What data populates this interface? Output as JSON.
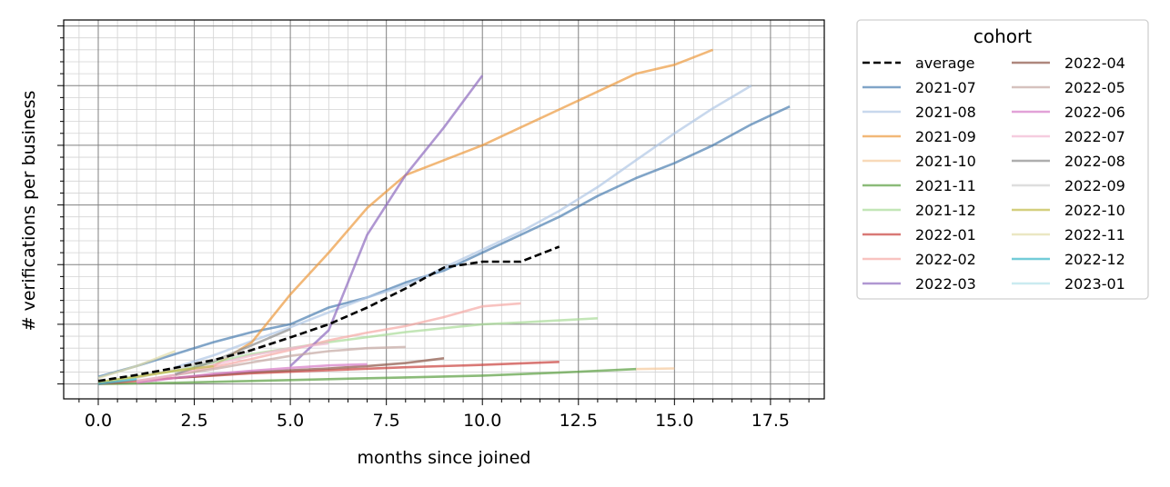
{
  "chart_data": {
    "type": "line",
    "title": "",
    "xlabel": "months since joined",
    "ylabel": "# verifications per business",
    "xlim": [
      -0.9,
      18.9
    ],
    "ylim": [
      -0.25,
      6.1
    ],
    "x_ticks": [
      0.0,
      2.5,
      5.0,
      7.5,
      10.0,
      12.5,
      15.0,
      17.5
    ],
    "x_tick_labels": [
      "0.0",
      "2.5",
      "5.0",
      "7.5",
      "10.0",
      "12.5",
      "15.0",
      "17.5"
    ],
    "y_ticks_shown_without_labels": [
      0,
      1,
      2,
      3,
      4,
      5,
      6
    ],
    "grid": true,
    "legend": {
      "title": "cohort",
      "placement": "outside-right",
      "columns": 2
    },
    "series": [
      {
        "name": "average",
        "color": "#000000",
        "dashed": true,
        "alpha": 1.0,
        "x": [
          0,
          1,
          2,
          3,
          4,
          5,
          6,
          7,
          8,
          9,
          10,
          11,
          12
        ],
        "y": [
          0.05,
          0.15,
          0.27,
          0.4,
          0.57,
          0.78,
          1.0,
          1.28,
          1.6,
          1.95,
          2.05,
          2.05,
          2.3
        ]
      },
      {
        "name": "2021-07",
        "color": "#4c7fb0",
        "alpha": 0.7,
        "x": [
          0,
          1,
          2,
          3,
          4,
          5,
          6,
          7,
          8,
          9,
          10,
          11,
          12,
          13,
          14,
          15,
          16,
          17,
          18
        ],
        "y": [
          0.12,
          0.3,
          0.5,
          0.7,
          0.87,
          1.0,
          1.28,
          1.45,
          1.7,
          1.9,
          2.2,
          2.5,
          2.8,
          3.15,
          3.45,
          3.7,
          4.0,
          4.35,
          4.65
        ]
      },
      {
        "name": "2021-08",
        "color": "#b0c8e6",
        "alpha": 0.7,
        "x": [
          2,
          3,
          4,
          5,
          6,
          7,
          8,
          9,
          10,
          11,
          12,
          13,
          14,
          15,
          16,
          17
        ],
        "y": [
          0.28,
          0.48,
          0.72,
          0.95,
          1.2,
          1.45,
          1.65,
          1.95,
          2.25,
          2.55,
          2.9,
          3.3,
          3.75,
          4.2,
          4.62,
          5.0
        ]
      },
      {
        "name": "2021-09",
        "color": "#ed9a3e",
        "alpha": 0.7,
        "x": [
          3,
          4,
          5,
          6,
          7,
          8,
          9,
          10,
          11,
          12,
          13,
          14,
          15,
          16
        ],
        "y": [
          0.3,
          0.7,
          1.5,
          2.2,
          2.95,
          3.5,
          3.75,
          4.0,
          4.3,
          4.6,
          4.9,
          5.2,
          5.35,
          5.6
        ]
      },
      {
        "name": "2021-10",
        "color": "#f5c99b",
        "alpha": 0.7,
        "x": [
          14,
          15
        ],
        "y": [
          0.25,
          0.26
        ]
      },
      {
        "name": "2021-11",
        "color": "#5a9e40",
        "alpha": 0.7,
        "x": [
          0,
          2,
          4,
          6,
          8,
          10,
          12,
          14
        ],
        "y": [
          0.0,
          0.02,
          0.05,
          0.08,
          0.11,
          0.14,
          0.19,
          0.25
        ]
      },
      {
        "name": "2021-12",
        "color": "#a9dc98",
        "alpha": 0.7,
        "x": [
          0,
          2,
          4,
          6,
          8,
          10,
          11,
          13
        ],
        "y": [
          0.03,
          0.22,
          0.5,
          0.7,
          0.87,
          1.0,
          1.03,
          1.1
        ]
      },
      {
        "name": "2022-01",
        "color": "#c9403c",
        "alpha": 0.7,
        "x": [
          0,
          2,
          4,
          6,
          8,
          10,
          12
        ],
        "y": [
          0.0,
          0.1,
          0.18,
          0.23,
          0.28,
          0.32,
          0.37
        ]
      },
      {
        "name": "2022-02",
        "color": "#f5a9a5",
        "alpha": 0.7,
        "x": [
          1,
          2,
          3,
          4,
          5,
          6,
          7,
          8,
          9,
          10,
          11
        ],
        "y": [
          0.03,
          0.15,
          0.28,
          0.42,
          0.57,
          0.73,
          0.86,
          0.97,
          1.12,
          1.3,
          1.35
        ]
      },
      {
        "name": "2022-03",
        "color": "#8e6bbf",
        "alpha": 0.7,
        "x": [
          5,
          5.5,
          6,
          7,
          8,
          9,
          10
        ],
        "y": [
          0.3,
          0.6,
          0.9,
          2.5,
          3.5,
          4.3,
          5.17
        ]
      },
      {
        "name": "2022-04",
        "color": "#8c5446",
        "alpha": 0.7,
        "x": [
          2,
          3,
          4,
          5,
          6,
          7,
          8,
          9
        ],
        "y": [
          0.1,
          0.15,
          0.2,
          0.23,
          0.26,
          0.3,
          0.35,
          0.43
        ]
      },
      {
        "name": "2022-05",
        "color": "#c5a8a2",
        "alpha": 0.7,
        "x": [
          1,
          2,
          3,
          4,
          5,
          6,
          7,
          8
        ],
        "y": [
          0.05,
          0.15,
          0.25,
          0.36,
          0.47,
          0.55,
          0.6,
          0.62
        ]
      },
      {
        "name": "2022-06",
        "color": "#d67ac6",
        "alpha": 0.7,
        "x": [
          1,
          2,
          3,
          4,
          5,
          6,
          7
        ],
        "y": [
          0.02,
          0.1,
          0.17,
          0.22,
          0.27,
          0.31,
          0.33
        ]
      },
      {
        "name": "2022-07",
        "color": "#f2b8d2",
        "alpha": 0.7,
        "x": [
          1,
          2,
          3,
          4,
          5,
          6
        ],
        "y": [
          0.05,
          0.15,
          0.32,
          0.48,
          0.6,
          0.68
        ]
      },
      {
        "name": "2022-08",
        "color": "#8c8c8c",
        "alpha": 0.7,
        "x": [
          2,
          3,
          4,
          5
        ],
        "y": [
          0.16,
          0.38,
          0.65,
          0.92
        ]
      },
      {
        "name": "2022-09",
        "color": "#d0d0d0",
        "alpha": 0.7,
        "x": [
          1,
          2,
          3,
          4
        ],
        "y": [
          0.1,
          0.25,
          0.4,
          0.55
        ]
      },
      {
        "name": "2022-10",
        "color": "#c2ba47",
        "alpha": 0.7,
        "x": [
          0,
          1,
          2,
          3
        ],
        "y": [
          0.03,
          0.12,
          0.22,
          0.3
        ]
      },
      {
        "name": "2022-11",
        "color": "#e2ddaa",
        "alpha": 0.7,
        "x": [
          0,
          1,
          2
        ],
        "y": [
          0.1,
          0.3,
          0.55
        ]
      },
      {
        "name": "2022-12",
        "color": "#38b6c7",
        "alpha": 0.7,
        "x": [
          0,
          1
        ],
        "y": [
          0.0,
          0.08
        ]
      },
      {
        "name": "2023-01",
        "color": "#b3e2ea",
        "alpha": 0.7,
        "x": [
          0
        ],
        "y": [
          0.0
        ]
      }
    ]
  }
}
